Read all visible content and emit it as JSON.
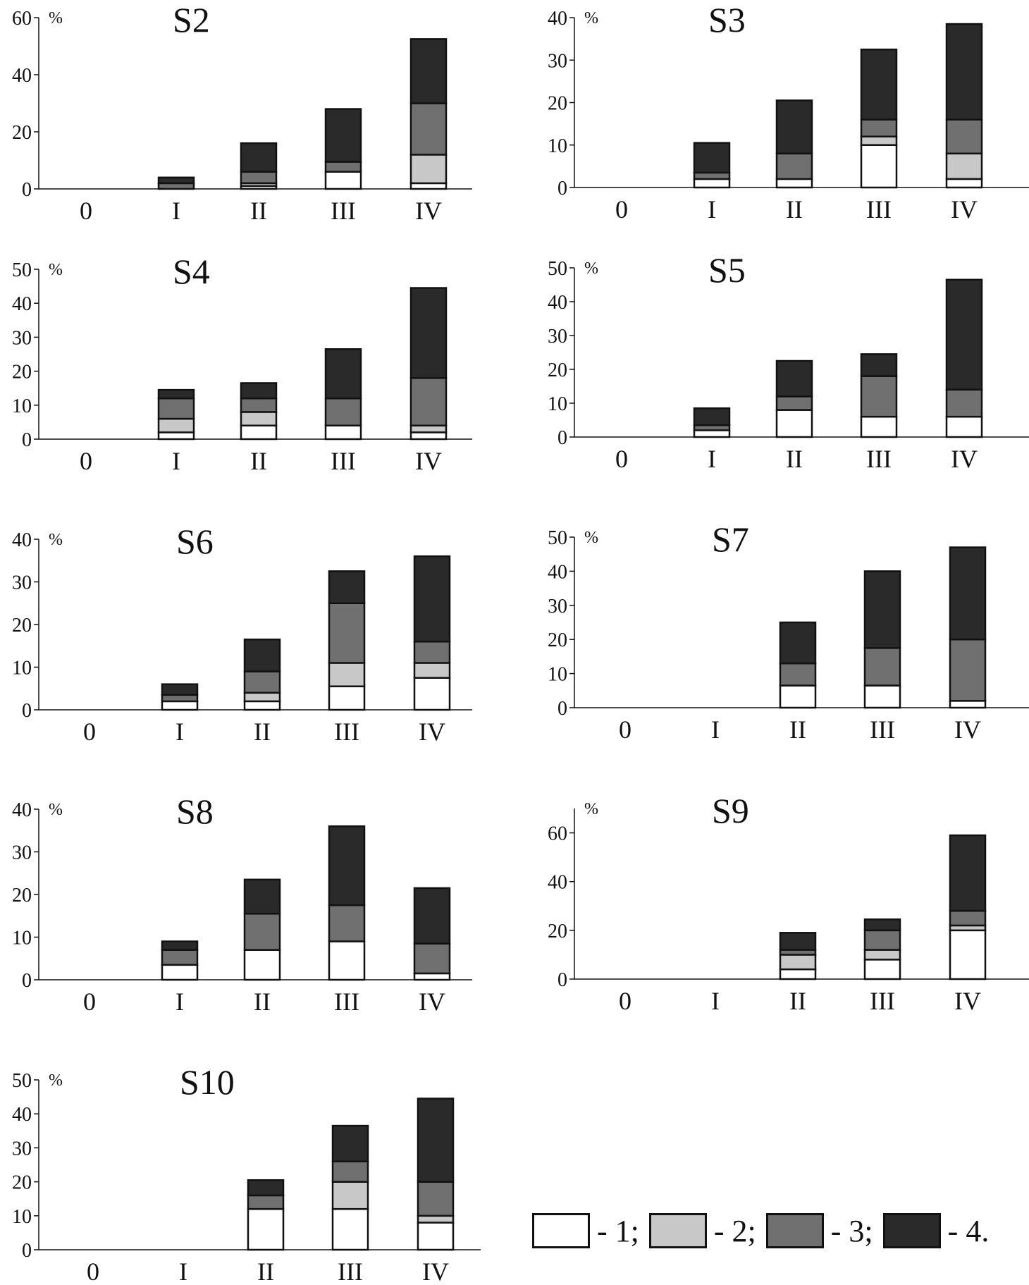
{
  "colors": {
    "s1": "#ffffff",
    "s2": "#c8c8c8",
    "s3": "#707070",
    "s4": "#2a2a2a",
    "axis": "#111111"
  },
  "chart_data": [
    {
      "type": "bar",
      "title": "S2",
      "ylabel": "%",
      "categories": [
        "0",
        "I",
        "II",
        "III",
        "IV"
      ],
      "ylim": [
        0,
        60
      ],
      "yticks": [
        0,
        20,
        40,
        60
      ],
      "series": [
        {
          "name": "1",
          "values": [
            0,
            0,
            1,
            6,
            2
          ]
        },
        {
          "name": "2",
          "values": [
            0,
            0,
            1,
            0,
            10
          ]
        },
        {
          "name": "3",
          "values": [
            0,
            2,
            4,
            3.5,
            18
          ]
        },
        {
          "name": "4",
          "values": [
            0,
            2,
            10,
            18.5,
            22.5
          ]
        }
      ]
    },
    {
      "type": "bar",
      "title": "S3",
      "ylabel": "%",
      "categories": [
        "0",
        "I",
        "II",
        "III",
        "IV"
      ],
      "ylim": [
        0,
        40
      ],
      "yticks": [
        0,
        10,
        20,
        30,
        40
      ],
      "series": [
        {
          "name": "1",
          "values": [
            0,
            2,
            2,
            10,
            2
          ]
        },
        {
          "name": "2",
          "values": [
            0,
            0,
            0,
            2,
            6
          ]
        },
        {
          "name": "3",
          "values": [
            0,
            1.5,
            6,
            4,
            8
          ]
        },
        {
          "name": "4",
          "values": [
            0,
            7,
            12.5,
            16.5,
            22.5
          ]
        }
      ]
    },
    {
      "type": "bar",
      "title": "S4",
      "ylabel": "%",
      "categories": [
        "0",
        "I",
        "II",
        "III",
        "IV"
      ],
      "ylim": [
        0,
        50
      ],
      "yticks": [
        0,
        10,
        20,
        30,
        40,
        50
      ],
      "series": [
        {
          "name": "1",
          "values": [
            0,
            2,
            4,
            4,
            2
          ]
        },
        {
          "name": "2",
          "values": [
            0,
            4,
            4,
            0,
            2
          ]
        },
        {
          "name": "3",
          "values": [
            0,
            6,
            4,
            8,
            14
          ]
        },
        {
          "name": "4",
          "values": [
            0,
            2.5,
            4.5,
            14.5,
            26.5
          ]
        }
      ]
    },
    {
      "type": "bar",
      "title": "S5",
      "ylabel": "%",
      "categories": [
        "0",
        "I",
        "II",
        "III",
        "IV"
      ],
      "ylim": [
        0,
        50
      ],
      "yticks": [
        0,
        10,
        20,
        30,
        40,
        50
      ],
      "series": [
        {
          "name": "1",
          "values": [
            0,
            2,
            8,
            6,
            6
          ]
        },
        {
          "name": "2",
          "values": [
            0,
            0,
            0,
            0,
            0
          ]
        },
        {
          "name": "3",
          "values": [
            0,
            1.5,
            4,
            12,
            8
          ]
        },
        {
          "name": "4",
          "values": [
            0,
            5,
            10.5,
            6.5,
            32.5
          ]
        }
      ]
    },
    {
      "type": "bar",
      "title": "S6",
      "ylabel": "%",
      "categories": [
        "0",
        "I",
        "II",
        "III",
        "IV"
      ],
      "ylim": [
        0,
        40
      ],
      "yticks": [
        0,
        10,
        20,
        30,
        40
      ],
      "series": [
        {
          "name": "1",
          "values": [
            0,
            2,
            2,
            5.5,
            7.5
          ]
        },
        {
          "name": "2",
          "values": [
            0,
            0,
            2,
            5.5,
            3.5
          ]
        },
        {
          "name": "3",
          "values": [
            0,
            1.5,
            5,
            14,
            5
          ]
        },
        {
          "name": "4",
          "values": [
            0,
            2.5,
            7.5,
            7.5,
            20
          ]
        }
      ]
    },
    {
      "type": "bar",
      "title": "S7",
      "ylabel": "%",
      "categories": [
        "0",
        "I",
        "II",
        "III",
        "IV"
      ],
      "ylim": [
        0,
        50
      ],
      "yticks": [
        0,
        10,
        20,
        30,
        40,
        50
      ],
      "series": [
        {
          "name": "1",
          "values": [
            0,
            0,
            6.5,
            6.5,
            2
          ]
        },
        {
          "name": "2",
          "values": [
            0,
            0,
            0,
            0,
            0
          ]
        },
        {
          "name": "3",
          "values": [
            0,
            0,
            6.5,
            11,
            18
          ]
        },
        {
          "name": "4",
          "values": [
            0,
            0,
            12,
            22.5,
            27
          ]
        }
      ]
    },
    {
      "type": "bar",
      "title": "S8",
      "ylabel": "%",
      "categories": [
        "0",
        "I",
        "II",
        "III",
        "IV"
      ],
      "ylim": [
        0,
        40
      ],
      "yticks": [
        0,
        10,
        20,
        30,
        40
      ],
      "series": [
        {
          "name": "1",
          "values": [
            0,
            3.5,
            7,
            9,
            1.5
          ]
        },
        {
          "name": "2",
          "values": [
            0,
            0,
            0,
            0,
            0
          ]
        },
        {
          "name": "3",
          "values": [
            0,
            3.5,
            8.5,
            8.5,
            7
          ]
        },
        {
          "name": "4",
          "values": [
            0,
            2,
            8,
            18.5,
            13
          ]
        }
      ]
    },
    {
      "type": "bar",
      "title": "S9",
      "ylabel": "%",
      "categories": [
        "0",
        "I",
        "II",
        "III",
        "IV"
      ],
      "ylim": [
        0,
        70
      ],
      "yticks": [
        0,
        20,
        40,
        60
      ],
      "series": [
        {
          "name": "1",
          "values": [
            0,
            0,
            4,
            8,
            20
          ]
        },
        {
          "name": "2",
          "values": [
            0,
            0,
            6,
            4,
            2
          ]
        },
        {
          "name": "3",
          "values": [
            0,
            0,
            2,
            8,
            6
          ]
        },
        {
          "name": "4",
          "values": [
            0,
            0,
            7,
            4.5,
            31
          ]
        }
      ]
    },
    {
      "type": "bar",
      "title": "S10",
      "ylabel": "%",
      "categories": [
        "0",
        "I",
        "II",
        "III",
        "IV"
      ],
      "ylim": [
        0,
        50
      ],
      "yticks": [
        0,
        10,
        20,
        30,
        40,
        50
      ],
      "series": [
        {
          "name": "1",
          "values": [
            0,
            0,
            12,
            12,
            8
          ]
        },
        {
          "name": "2",
          "values": [
            0,
            0,
            0,
            8,
            2
          ]
        },
        {
          "name": "3",
          "values": [
            0,
            0,
            4,
            6,
            10
          ]
        },
        {
          "name": "4",
          "values": [
            0,
            0,
            4.5,
            10.5,
            24.5
          ]
        }
      ]
    }
  ],
  "legend": [
    {
      "color_key": "s1",
      "label": "- 1;"
    },
    {
      "color_key": "s2",
      "label": "- 2;"
    },
    {
      "color_key": "s3",
      "label": "- 3;"
    },
    {
      "color_key": "s4",
      "label": "- 4."
    }
  ]
}
